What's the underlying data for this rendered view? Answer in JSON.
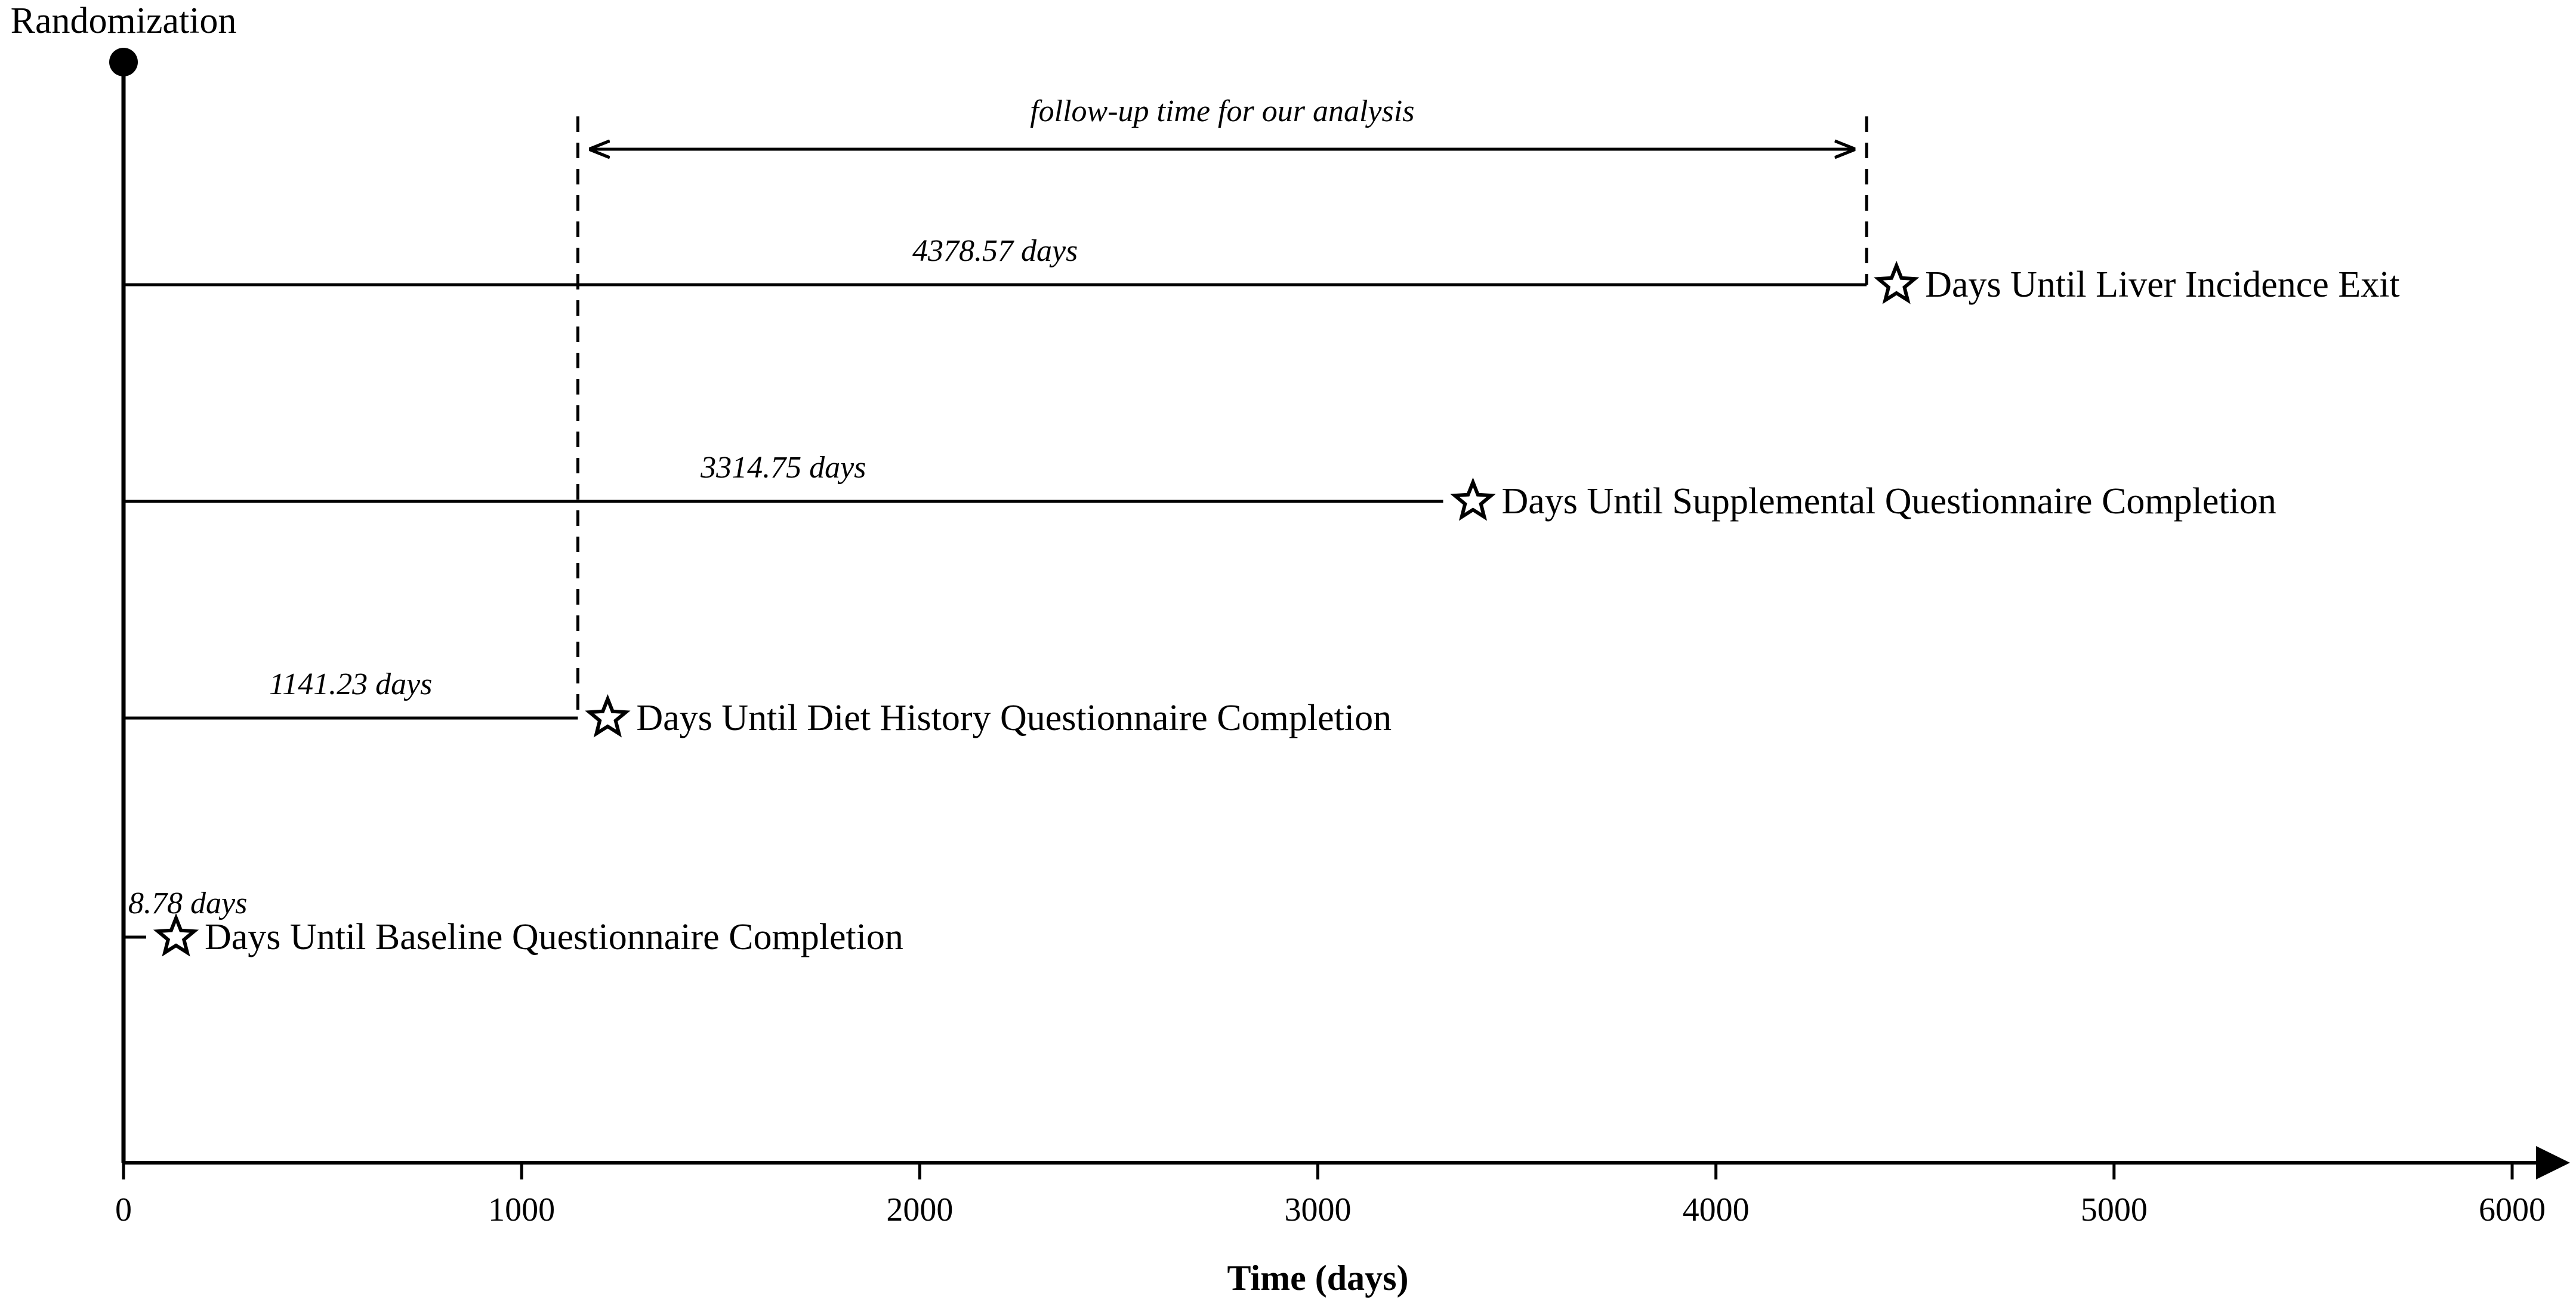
{
  "chart_data": {
    "type": "timeline",
    "origin_label": "Randomization",
    "xlabel": "Time (days)",
    "xlim": [
      0,
      6000
    ],
    "x_ticks": [
      0,
      1000,
      2000,
      3000,
      4000,
      5000,
      6000
    ],
    "events": [
      {
        "name": "Days Until Liver Incidence Exit",
        "days": 4378.57,
        "duration_label": "4378.57 days"
      },
      {
        "name": "Days Until Supplemental Questionnaire Completion",
        "days": 3314.75,
        "duration_label": "3314.75 days"
      },
      {
        "name": "Days Until Diet History Questionnaire Completion",
        "days": 1141.23,
        "duration_label": "1141.23 days"
      },
      {
        "name": "Days Until Baseline Questionnaire Completion",
        "days": 8.78,
        "duration_label": "8.78 days"
      }
    ],
    "follow_up": {
      "label": "follow-up time for our analysis",
      "start_days": 1141.23,
      "end_days": 4378.57
    },
    "colors": {
      "line": "#000000",
      "background": "#ffffff"
    },
    "marker": "star-outline-icon"
  }
}
